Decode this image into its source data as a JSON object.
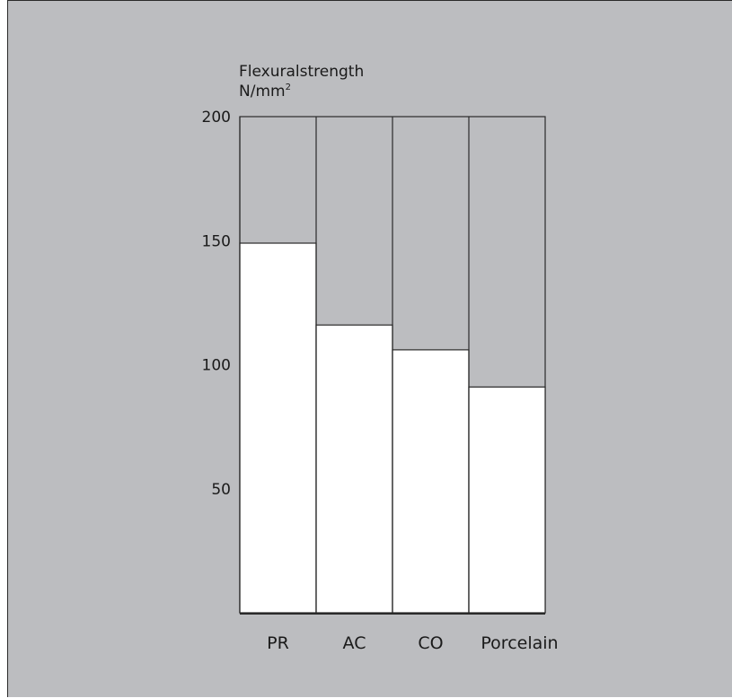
{
  "chart_data": {
    "type": "bar",
    "title_line1": "Flexuralstrength",
    "title_line2_base": "N/mm",
    "title_line2_sup": "2",
    "categories": [
      "PR",
      "AC",
      "CO",
      "Porcelain"
    ],
    "values": [
      149,
      116,
      106,
      91
    ],
    "ylim": [
      0,
      200
    ],
    "yticks": [
      50,
      100,
      150,
      200
    ],
    "grid": false,
    "legend": "none",
    "colors": {
      "background": "#bcbdc0",
      "bar": "#ffffff",
      "axis": "#2a2a2a"
    }
  }
}
